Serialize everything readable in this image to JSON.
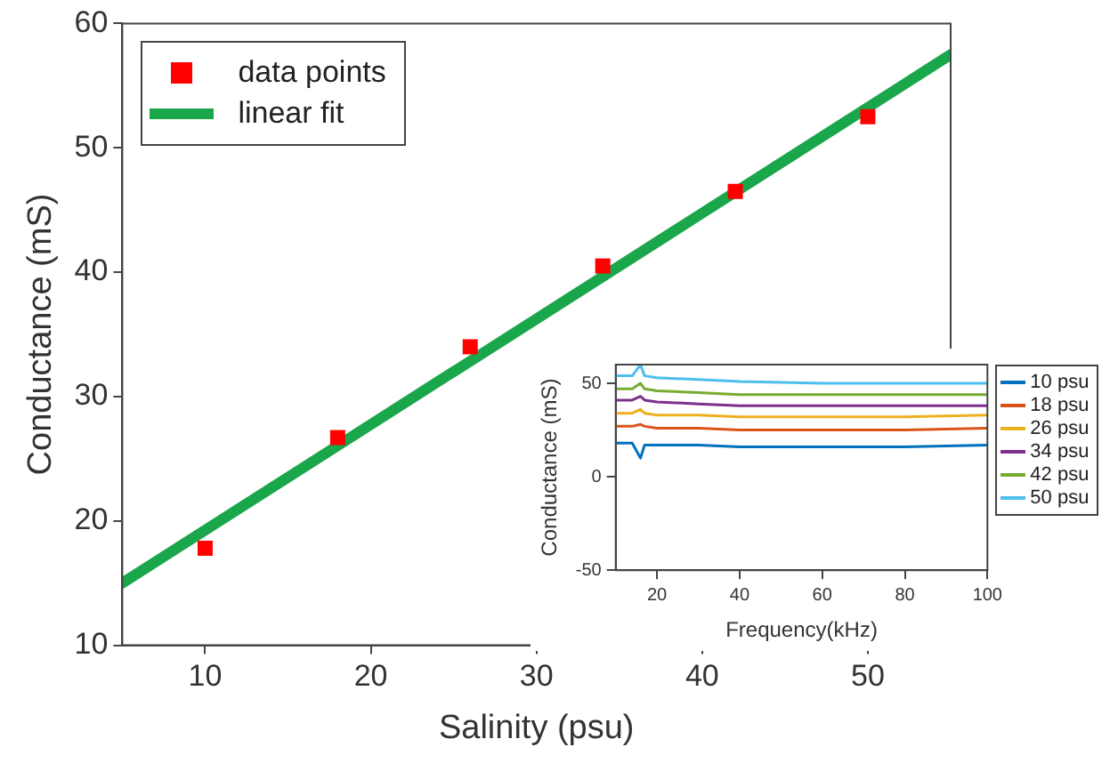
{
  "chart_data": [
    {
      "type": "scatter",
      "xlabel": "Salinity (psu)",
      "ylabel": "Conductance (mS)",
      "xlim": [
        5,
        55
      ],
      "ylim": [
        10,
        60
      ],
      "xticks": [
        10,
        20,
        30,
        40,
        50
      ],
      "yticks": [
        10,
        20,
        30,
        40,
        50,
        60
      ],
      "grid": false,
      "legend": "top left",
      "series": [
        {
          "name": "data points",
          "type": "scatter",
          "marker": "square",
          "color": "#ff0000",
          "x": [
            10,
            18,
            26,
            34,
            42,
            50
          ],
          "values": [
            17.8,
            26.7,
            34,
            40.5,
            46.5,
            52.5
          ]
        },
        {
          "name": "linear fit",
          "type": "line",
          "marker": "none",
          "color": "#1aa64a",
          "x": [
            5,
            55
          ],
          "values": [
            15,
            57.5
          ]
        }
      ]
    },
    {
      "type": "line",
      "xlabel": "Frequency(kHz)",
      "ylabel": "Conductance (mS)",
      "xlim": [
        10,
        100
      ],
      "ylim": [
        -50,
        60
      ],
      "xticks": [
        20,
        40,
        60,
        80,
        100
      ],
      "yticks": [
        -50,
        0,
        50
      ],
      "grid": false,
      "legend": "right",
      "marker": "none",
      "x": [
        10,
        14,
        16,
        17,
        20,
        30,
        40,
        60,
        80,
        100
      ],
      "series": [
        {
          "name": "10 psu",
          "color": "#0072bd",
          "values": [
            18,
            18,
            10,
            17,
            17,
            17,
            16,
            16,
            16,
            17
          ]
        },
        {
          "name": "18 psu",
          "color": "#d95319",
          "values": [
            27,
            27,
            28,
            27,
            26,
            26,
            25,
            25,
            25,
            26
          ]
        },
        {
          "name": "26 psu",
          "color": "#edb120",
          "values": [
            34,
            34,
            36,
            34,
            33,
            33,
            32,
            32,
            32,
            33
          ]
        },
        {
          "name": "34 psu",
          "color": "#7e2f8e",
          "values": [
            41,
            41,
            43,
            41,
            40,
            39,
            38,
            38,
            38,
            38
          ]
        },
        {
          "name": "42 psu",
          "color": "#77ac30",
          "values": [
            47,
            47,
            50,
            47,
            46,
            45,
            44,
            44,
            44,
            44
          ]
        },
        {
          "name": "50 psu",
          "color": "#4dbeee",
          "values": [
            54,
            54,
            60,
            54,
            53,
            52,
            51,
            50,
            50,
            50
          ]
        }
      ]
    }
  ]
}
